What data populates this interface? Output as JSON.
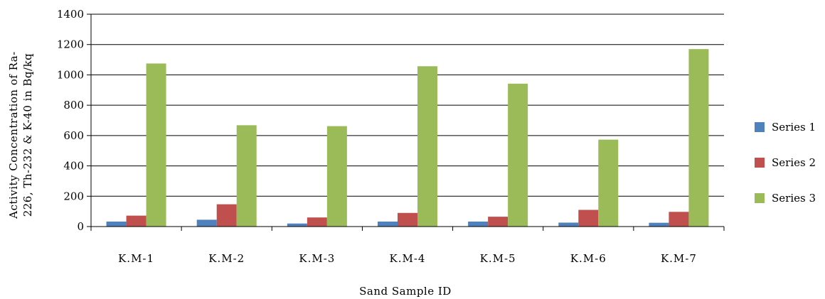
{
  "chart_data": {
    "type": "bar",
    "title": "",
    "xlabel": "Sand Sample ID",
    "ylabel_lines": [
      "Activity Concentration of Ra-",
      "226, Th-232 & K-40  in Bq/kq"
    ],
    "ylim": [
      0,
      1400
    ],
    "yticks": [
      0,
      200,
      400,
      600,
      800,
      1000,
      1200,
      1400
    ],
    "grid": true,
    "legend_position": "right",
    "categories": [
      "K.M-1",
      "K.M-2",
      "K.M-3",
      "K.M-4",
      "K.M-5",
      "K.M-6",
      "K.M-7"
    ],
    "series": [
      {
        "name": "Series 1",
        "color": "#4f81bd",
        "values": [
          33,
          45,
          20,
          33,
          33,
          26,
          25
        ]
      },
      {
        "name": "Series 2",
        "color": "#c0504d",
        "values": [
          72,
          147,
          60,
          90,
          65,
          110,
          97
        ]
      },
      {
        "name": "Series 3",
        "color": "#9bbb59",
        "values": [
          1075,
          668,
          662,
          1057,
          942,
          573,
          1170
        ]
      }
    ]
  }
}
